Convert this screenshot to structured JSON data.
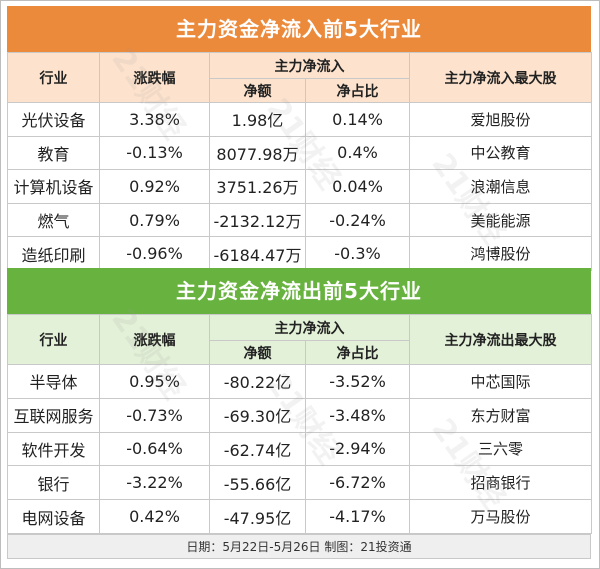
{
  "inflow": {
    "title": "主力资金净流入前5大行业",
    "headers": {
      "industry": "行业",
      "change": "涨跌幅",
      "group": "主力净流入",
      "amount": "净额",
      "ratio": "净占比",
      "top_stock": "主力净流入最大股"
    },
    "rows": [
      {
        "industry": "光伏设备",
        "change": "3.38%",
        "amount": "1.98亿",
        "ratio": "0.14%",
        "stock": "爱旭股份"
      },
      {
        "industry": "教育",
        "change": "-0.13%",
        "amount": "8077.98万",
        "ratio": "0.4%",
        "stock": "中公教育"
      },
      {
        "industry": "计算机设备",
        "change": "0.92%",
        "amount": "3751.26万",
        "ratio": "0.04%",
        "stock": "浪潮信息"
      },
      {
        "industry": "燃气",
        "change": "0.79%",
        "amount": "-2132.12万",
        "ratio": "-0.24%",
        "stock": "美能能源"
      },
      {
        "industry": "造纸印刷",
        "change": "-0.96%",
        "amount": "-6184.47万",
        "ratio": "-0.3%",
        "stock": "鸿博股份"
      }
    ]
  },
  "outflow": {
    "title": "主力资金净流出前5大行业",
    "headers": {
      "industry": "行业",
      "change": "涨跌幅",
      "group": "主力净流入",
      "amount": "净额",
      "ratio": "净占比",
      "top_stock": "主力净流出最大股"
    },
    "rows": [
      {
        "industry": "半导体",
        "change": "0.95%",
        "amount": "-80.22亿",
        "ratio": "-3.52%",
        "stock": "中芯国际"
      },
      {
        "industry": "互联网服务",
        "change": "-0.73%",
        "amount": "-69.30亿",
        "ratio": "-3.48%",
        "stock": "东方财富"
      },
      {
        "industry": "软件开发",
        "change": "-0.64%",
        "amount": "-62.74亿",
        "ratio": "-2.94%",
        "stock": "三六零"
      },
      {
        "industry": "银行",
        "change": "-3.22%",
        "amount": "-55.66亿",
        "ratio": "-6.72%",
        "stock": "招商银行"
      },
      {
        "industry": "电网设备",
        "change": "0.42%",
        "amount": "-47.95亿",
        "ratio": "-4.17%",
        "stock": "万马股份"
      }
    ]
  },
  "footer": "日期：5月22日-5月26日  制图：21投资通",
  "watermark": "21财经",
  "colors": {
    "inflow_banner": "#ec8a3c",
    "inflow_header": "#fde3cd",
    "outflow_banner": "#68b33f",
    "outflow_header": "#e3f1d8"
  }
}
